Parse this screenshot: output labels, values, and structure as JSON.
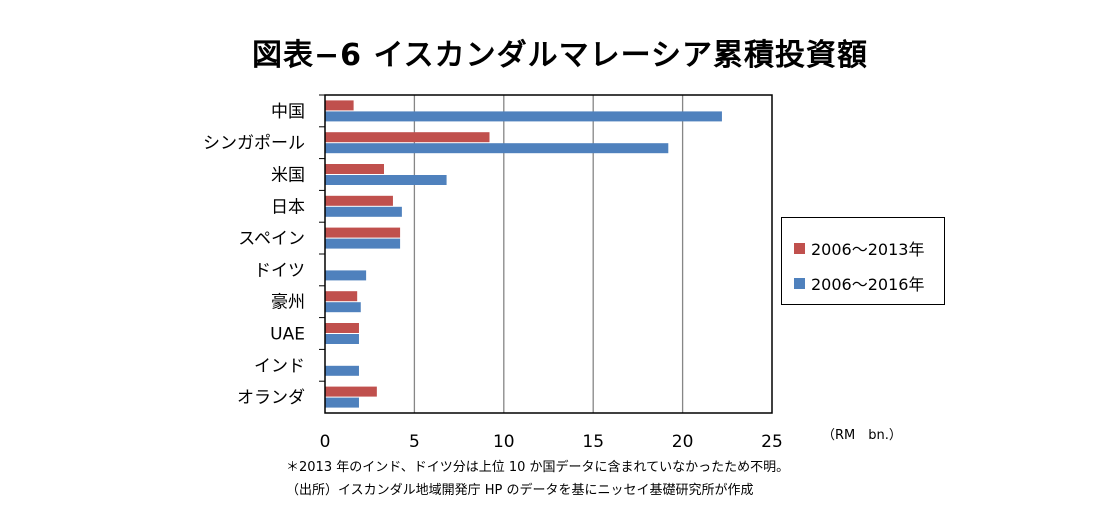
{
  "chart_data": {
    "type": "bar",
    "orientation": "horizontal",
    "title": "図表−6 イスカンダルマレーシア累積投資額",
    "categories": [
      "中国",
      "シンガポール",
      "米国",
      "日本",
      "スペイン",
      "ドイツ",
      "豪州",
      "UAE",
      "インド",
      "オランダ"
    ],
    "series": [
      {
        "name": "2006～2013年",
        "color": "#c0504d",
        "values": [
          1.6,
          9.2,
          3.3,
          3.8,
          4.2,
          null,
          1.8,
          1.9,
          null,
          2.9
        ]
      },
      {
        "name": "2006～2016年",
        "color": "#4f81bd",
        "values": [
          22.2,
          19.2,
          6.8,
          4.3,
          4.2,
          2.3,
          2.0,
          1.9,
          1.9,
          1.9
        ]
      }
    ],
    "xlim": [
      0,
      25
    ],
    "xticks": [
      "0",
      "5",
      "10",
      "15",
      "20",
      "25"
    ],
    "unit_label": "（RM　bn.）",
    "grid": true,
    "legend_position": "right"
  },
  "notes": [
    "＊2013 年のインド、ドイツ分は上位 10 か国データに含まれていなかったため不明。",
    "（出所）イスカンダル地域開発庁 HP のデータを基にニッセイ基礎研究所が作成"
  ]
}
